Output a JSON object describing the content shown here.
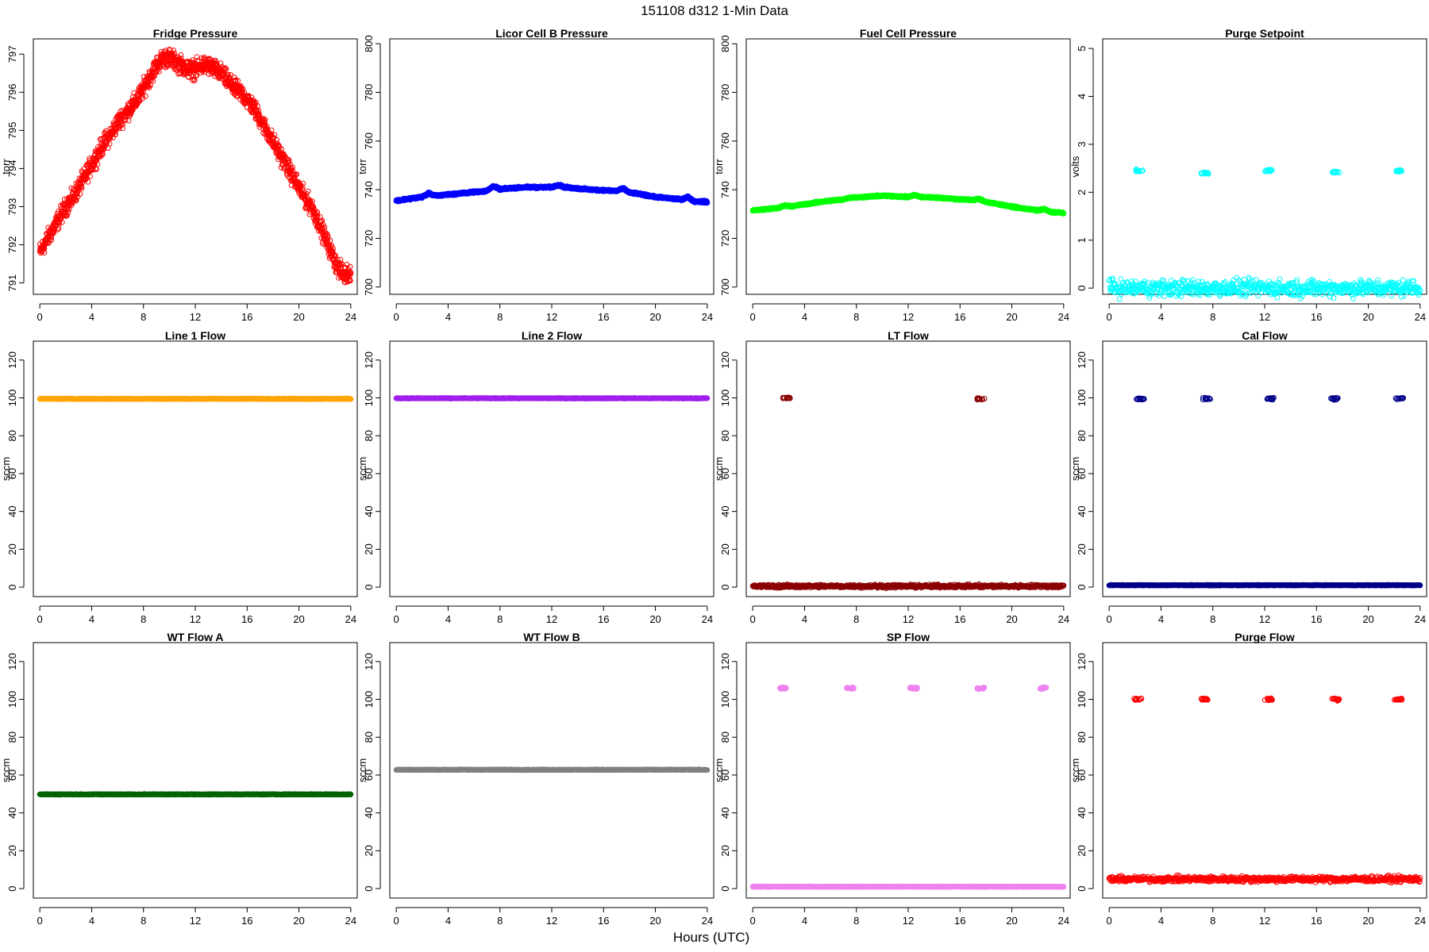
{
  "main_title": "151108   d312   1-Min Data",
  "xlabel": "Hours (UTC)",
  "chart_data": [
    {
      "type": "scatter",
      "title": "Fridge Pressure",
      "ylabel": "torr",
      "color": "#ff0000",
      "marker": "open-circle",
      "xlim": [
        -0.5,
        24.5
      ],
      "xticks": [
        0,
        4,
        8,
        12,
        16,
        20,
        24
      ],
      "ylim": [
        790.7,
        797.4
      ],
      "yticks": [
        791,
        792,
        793,
        794,
        795,
        796,
        797
      ],
      "series": [
        {
          "x": [
            0,
            0.5,
            1,
            1.5,
            2,
            2.5,
            3,
            3.5,
            4,
            4.5,
            5,
            5.5,
            6,
            6.5,
            7,
            7.5,
            8,
            8.5,
            9,
            9.5,
            10,
            10.5,
            11,
            11.5,
            12,
            12.5,
            13,
            13.5,
            14,
            14.5,
            15,
            15.5,
            16,
            16.5,
            17,
            17.5,
            18,
            18.5,
            19,
            19.5,
            20,
            20.5,
            21,
            21.5,
            22,
            22.5,
            23,
            23.5,
            24
          ],
          "y": [
            791.8,
            792.1,
            792.4,
            792.7,
            793.0,
            793.2,
            793.5,
            793.8,
            794.1,
            794.4,
            794.7,
            794.9,
            795.2,
            795.4,
            795.6,
            795.8,
            796.1,
            796.4,
            796.7,
            796.9,
            796.9,
            796.8,
            796.7,
            796.6,
            796.6,
            796.7,
            796.7,
            796.6,
            796.5,
            796.3,
            796.1,
            796.0,
            795.8,
            795.6,
            795.3,
            795.0,
            794.7,
            794.4,
            794.1,
            793.8,
            793.5,
            793.2,
            793.0,
            792.6,
            792.2,
            791.8,
            791.4,
            791.2,
            791.3
          ],
          "spread": 0.35
        }
      ]
    },
    {
      "type": "scatter",
      "title": "Licor Cell B Pressure",
      "ylabel": "torr",
      "color": "#0000ff",
      "marker": "open-circle",
      "xlim": [
        -0.5,
        24.5
      ],
      "xticks": [
        0,
        4,
        8,
        12,
        16,
        20,
        24
      ],
      "ylim": [
        697,
        802
      ],
      "yticks": [
        700,
        720,
        740,
        760,
        780,
        800
      ],
      "series": [
        {
          "x": [
            0,
            1,
            2,
            2.5,
            3,
            4,
            5,
            6,
            7,
            7.5,
            8,
            9,
            10,
            11,
            12,
            12.5,
            13,
            14,
            15,
            16,
            17,
            17.5,
            18,
            19,
            20,
            21,
            22,
            22.5,
            23,
            24
          ],
          "y": [
            735.5,
            736.3,
            737.0,
            738.5,
            737.5,
            738.0,
            738.5,
            739.0,
            739.5,
            741.5,
            740.2,
            740.7,
            741.0,
            741.0,
            741.0,
            742.0,
            741.0,
            740.5,
            740.0,
            739.8,
            739.5,
            740.5,
            738.8,
            738.0,
            737.0,
            736.5,
            736.0,
            737.0,
            735.2,
            735.0
          ],
          "spread": 0.6
        }
      ]
    },
    {
      "type": "scatter",
      "title": "Fuel Cell Pressure",
      "ylabel": "torr",
      "color": "#00ff00",
      "marker": "open-circle",
      "xlim": [
        -0.5,
        24.5
      ],
      "xticks": [
        0,
        4,
        8,
        12,
        16,
        20,
        24
      ],
      "ylim": [
        697,
        802
      ],
      "yticks": [
        700,
        720,
        740,
        760,
        780,
        800
      ],
      "series": [
        {
          "x": [
            0,
            1,
            2,
            2.5,
            3,
            4,
            5,
            6,
            7,
            7.5,
            8,
            9,
            10,
            11,
            12,
            12.5,
            13,
            14,
            15,
            16,
            17,
            17.5,
            18,
            19,
            20,
            21,
            22,
            22.5,
            23,
            24
          ],
          "y": [
            731.5,
            732.0,
            732.5,
            733.5,
            733.2,
            734.0,
            734.8,
            735.5,
            736.0,
            736.8,
            736.8,
            737.2,
            737.5,
            737.3,
            737.0,
            737.8,
            737.0,
            736.8,
            736.5,
            736.0,
            735.8,
            736.2,
            735.0,
            734.0,
            733.0,
            732.2,
            731.5,
            732.0,
            730.8,
            730.5
          ],
          "spread": 0.5
        }
      ]
    },
    {
      "type": "scatter",
      "title": "Purge Setpoint",
      "ylabel": "volts",
      "color": "#00ffff",
      "marker": "open-circle",
      "xlim": [
        -0.5,
        24.5
      ],
      "xticks": [
        0,
        4,
        8,
        12,
        16,
        20,
        24
      ],
      "ylim": [
        -0.13,
        5.2
      ],
      "yticks": [
        0,
        1,
        2,
        3,
        4,
        5
      ],
      "series": [
        {
          "baseline": 0,
          "bursts": [
            {
              "x": 2.3,
              "y": 2.45
            },
            {
              "x": 7.4,
              "y": 2.4
            },
            {
              "x": 12.3,
              "y": 2.45
            },
            {
              "x": 17.5,
              "y": 2.42
            },
            {
              "x": 22.4,
              "y": 2.45
            }
          ]
        }
      ]
    },
    {
      "type": "scatter",
      "title": "Line 1 Flow",
      "ylabel": "sccm",
      "color": "#ffa500",
      "marker": "filled",
      "xlim": [
        -0.5,
        24.5
      ],
      "xticks": [
        0,
        4,
        8,
        12,
        16,
        20,
        24
      ],
      "ylim": [
        -5,
        130
      ],
      "yticks": [
        0,
        20,
        40,
        60,
        80,
        100,
        120
      ],
      "series": [
        {
          "baseline": 99.5
        }
      ]
    },
    {
      "type": "scatter",
      "title": "Line 2 Flow",
      "ylabel": "sccm",
      "color": "#a020f0",
      "marker": "filled",
      "xlim": [
        -0.5,
        24.5
      ],
      "xticks": [
        0,
        4,
        8,
        12,
        16,
        20,
        24
      ],
      "ylim": [
        -5,
        130
      ],
      "yticks": [
        0,
        20,
        40,
        60,
        80,
        100,
        120
      ],
      "series": [
        {
          "baseline": 99.8
        }
      ]
    },
    {
      "type": "scatter",
      "title": "LT Flow",
      "ylabel": "sccm",
      "color": "#8b0000",
      "marker": "open-circle",
      "xlim": [
        -0.5,
        24.5
      ],
      "xticks": [
        0,
        4,
        8,
        12,
        16,
        20,
        24
      ],
      "ylim": [
        -5,
        130
      ],
      "yticks": [
        0,
        20,
        40,
        60,
        80,
        100,
        120
      ],
      "series": [
        {
          "baseline": 0.5,
          "bursts": [
            {
              "x": 2.6,
              "y": 100
            },
            {
              "x": 17.6,
              "y": 99.5
            }
          ]
        }
      ]
    },
    {
      "type": "scatter",
      "title": "Cal Flow",
      "ylabel": "sccm",
      "color": "#00008b",
      "marker": "open-circle",
      "xlim": [
        -0.5,
        24.5
      ],
      "xticks": [
        0,
        4,
        8,
        12,
        16,
        20,
        24
      ],
      "ylim": [
        -5,
        130
      ],
      "yticks": [
        0,
        20,
        40,
        60,
        80,
        100,
        120
      ],
      "series": [
        {
          "baseline": 1,
          "bursts": [
            {
              "x": 2.4,
              "y": 99.6
            },
            {
              "x": 7.5,
              "y": 99.6
            },
            {
              "x": 12.4,
              "y": 99.6
            },
            {
              "x": 17.4,
              "y": 99.6
            },
            {
              "x": 22.4,
              "y": 99.6
            }
          ]
        }
      ]
    },
    {
      "type": "scatter",
      "title": "WT Flow A",
      "ylabel": "sccm",
      "color": "#006400",
      "marker": "filled",
      "xlim": [
        -0.5,
        24.5
      ],
      "xticks": [
        0,
        4,
        8,
        12,
        16,
        20,
        24
      ],
      "ylim": [
        -5,
        130
      ],
      "yticks": [
        0,
        20,
        40,
        60,
        80,
        100,
        120
      ],
      "series": [
        {
          "baseline": 49.8
        }
      ]
    },
    {
      "type": "scatter",
      "title": "WT Flow B",
      "ylabel": "sccm",
      "color": "#808080",
      "marker": "filled",
      "xlim": [
        -0.5,
        24.5
      ],
      "xticks": [
        0,
        4,
        8,
        12,
        16,
        20,
        24
      ],
      "ylim": [
        -5,
        130
      ],
      "yticks": [
        0,
        20,
        40,
        60,
        80,
        100,
        120
      ],
      "series": [
        {
          "baseline": 62.8
        }
      ]
    },
    {
      "type": "scatter",
      "title": "SP Flow",
      "ylabel": "sccm",
      "color": "#ee82ee",
      "marker": "filled",
      "xlim": [
        -0.5,
        24.5
      ],
      "xticks": [
        0,
        4,
        8,
        12,
        16,
        20,
        24
      ],
      "ylim": [
        -5,
        130
      ],
      "yticks": [
        0,
        20,
        40,
        60,
        80,
        100,
        120
      ],
      "series": [
        {
          "baseline": 1,
          "bursts": [
            {
              "x": 2.4,
              "y": 106
            },
            {
              "x": 7.5,
              "y": 106
            },
            {
              "x": 12.4,
              "y": 106
            },
            {
              "x": 17.6,
              "y": 106
            },
            {
              "x": 22.4,
              "y": 106
            }
          ]
        }
      ]
    },
    {
      "type": "scatter",
      "title": "Purge Flow",
      "ylabel": "sccm",
      "color": "#ff0000",
      "marker": "open-circle",
      "xlim": [
        -0.5,
        24.5
      ],
      "xticks": [
        0,
        4,
        8,
        12,
        16,
        20,
        24
      ],
      "ylim": [
        -5,
        130
      ],
      "yticks": [
        0,
        20,
        40,
        60,
        80,
        100,
        120
      ],
      "series": [
        {
          "baseline": 5,
          "bursts": [
            {
              "x": 2.2,
              "y": 100
            },
            {
              "x": 7.4,
              "y": 100
            },
            {
              "x": 12.3,
              "y": 100
            },
            {
              "x": 17.5,
              "y": 100
            },
            {
              "x": 22.3,
              "y": 100
            }
          ]
        }
      ]
    }
  ]
}
